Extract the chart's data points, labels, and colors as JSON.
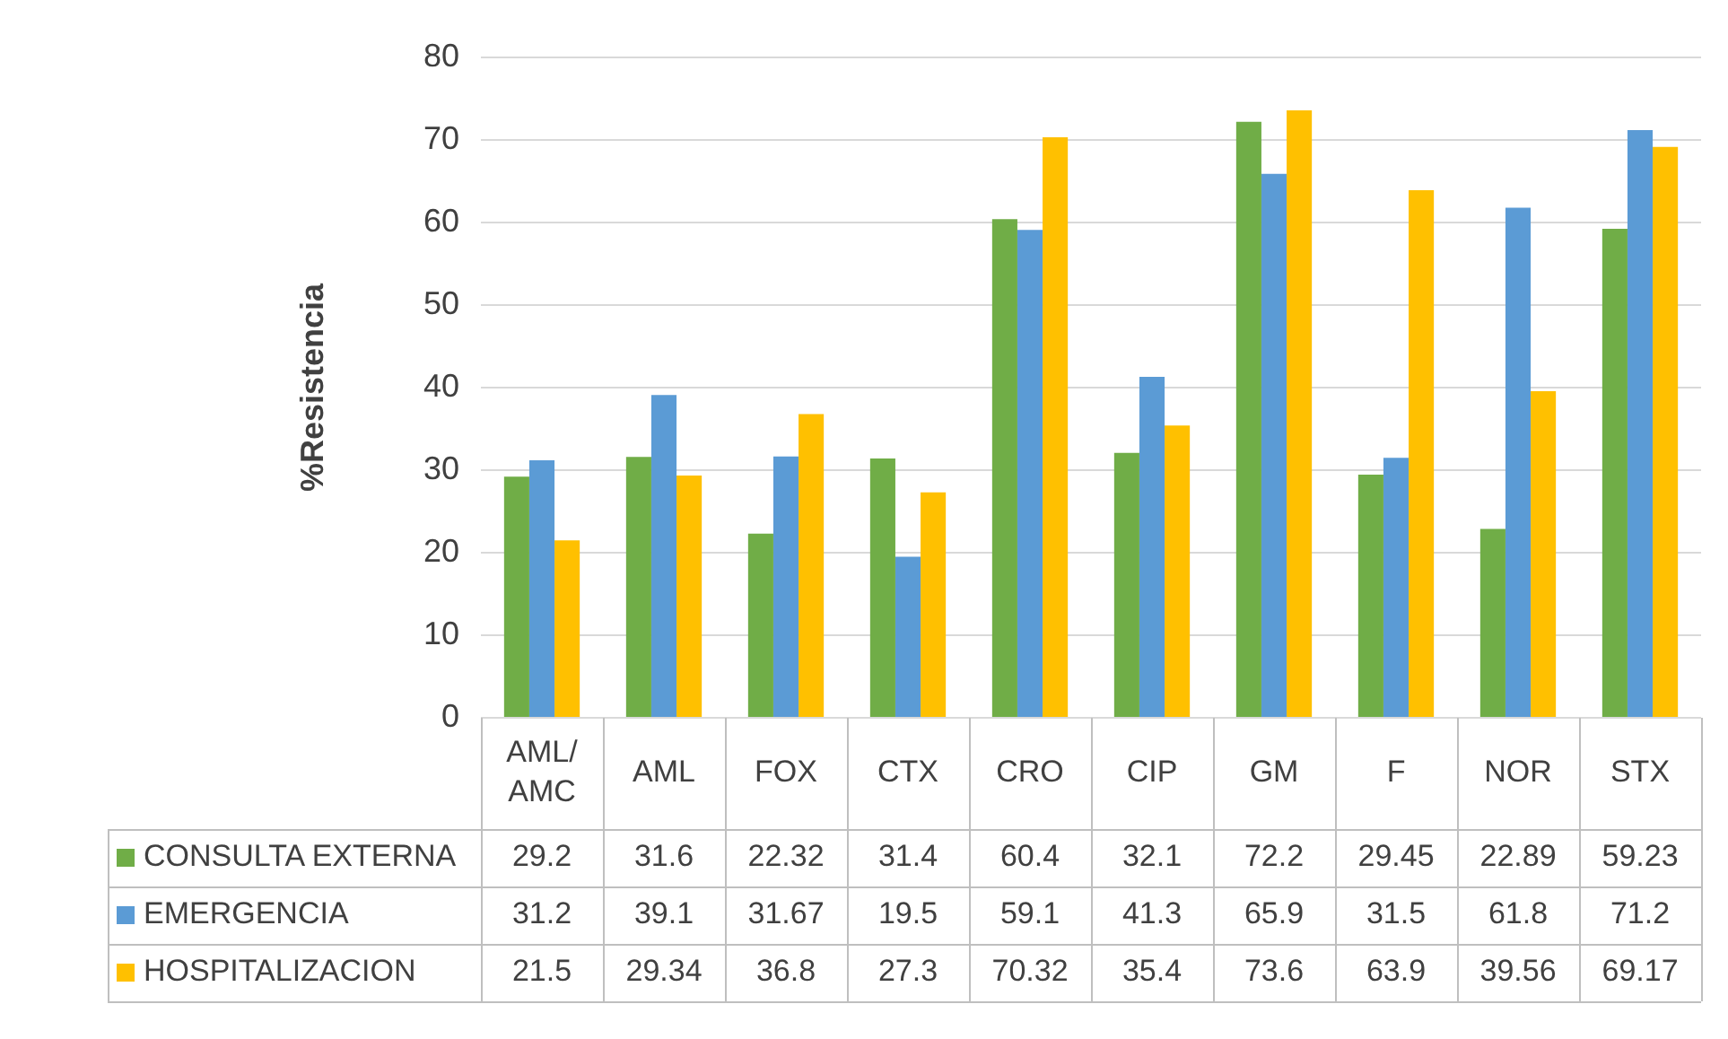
{
  "chart_data": {
    "type": "bar",
    "ylabel": "%Resistencia",
    "categories": [
      "AML/AMC",
      "AML",
      "FOX",
      "CTX",
      "CRO",
      "CIP",
      "GM",
      "F",
      "NOR",
      "STX"
    ],
    "series": [
      {
        "name": "CONSULTA EXTERNA",
        "color": "#70ad47",
        "values": [
          29.2,
          31.6,
          22.32,
          31.4,
          60.4,
          32.1,
          72.2,
          29.45,
          22.89,
          59.23
        ]
      },
      {
        "name": "EMERGENCIA",
        "color": "#5b9bd5",
        "values": [
          31.2,
          39.1,
          31.67,
          19.5,
          59.1,
          41.3,
          65.9,
          31.5,
          61.8,
          71.2
        ]
      },
      {
        "name": "HOSPITALIZACION",
        "color": "#ffc000",
        "values": [
          21.5,
          29.34,
          36.8,
          27.3,
          70.32,
          35.4,
          73.6,
          63.9,
          39.56,
          69.17
        ]
      }
    ],
    "ylim": [
      0,
      80
    ],
    "yticks": [
      0,
      10,
      20,
      30,
      40,
      50,
      60,
      70,
      80
    ],
    "grid": "y",
    "legend": "bottom",
    "data_labels": true
  }
}
